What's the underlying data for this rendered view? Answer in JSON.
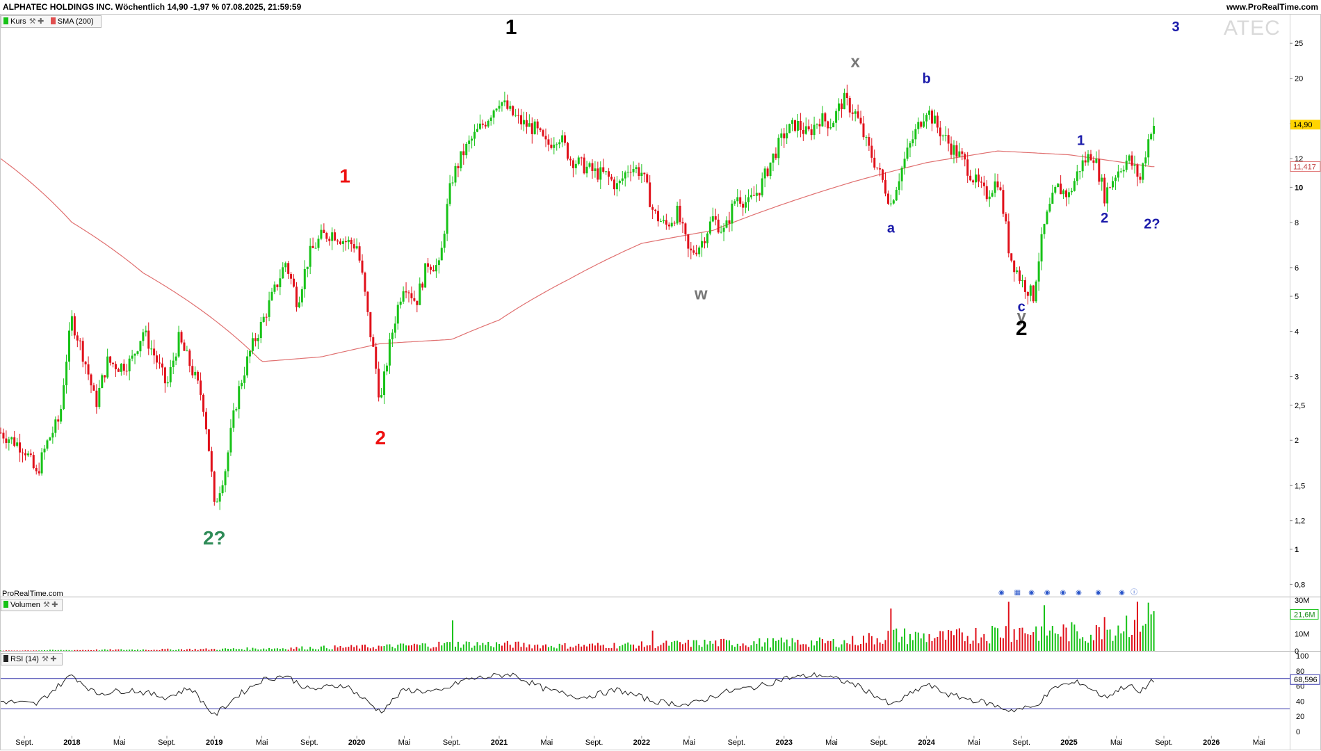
{
  "header": {
    "title": "ALPHATEC HOLDINGS INC. Wöchentlich 14,90 -1,97 % 07.08.2025, 21:59:59",
    "site": "www.ProRealTime.com"
  },
  "watermark": "ATEC",
  "source_label": "ProRealTime.com",
  "colors": {
    "up": "#17c217",
    "down": "#e0101a",
    "sma": "#e07070",
    "rsi_line": "#222222",
    "rsi_bounds": "#3333aa",
    "last_price_bg": "#ffd400"
  },
  "legends": {
    "price": [
      {
        "label": "Kurs",
        "color": "#17c217"
      },
      {
        "label": "SMA (200)",
        "color": "#e05050"
      }
    ],
    "volume": [
      {
        "label": "Volumen",
        "color": "#17c217"
      }
    ],
    "rsi": [
      {
        "label": "RSI (14)",
        "color": "#222222"
      }
    ]
  },
  "chart_data": [
    {
      "type": "candlestick",
      "panel": "price",
      "scale": "log",
      "ylim": [
        0.74,
        30
      ],
      "y_ticks": [
        "0,8",
        "1",
        "1,2",
        "1,5",
        "2",
        "2,5",
        "3",
        "4",
        "5",
        "6",
        "8",
        "10",
        "12",
        "15",
        "20",
        "25"
      ],
      "x_ticks": [
        "Sept.",
        "2018",
        "Mai",
        "Sept.",
        "2019",
        "Mai",
        "Sept.",
        "2020",
        "Mai",
        "Sept.",
        "2021",
        "Mai",
        "Sept.",
        "2022",
        "Mai",
        "Sept.",
        "2023",
        "Mai",
        "Sept.",
        "2024",
        "Mai",
        "Sept.",
        "2025",
        "Mai",
        "Sept.",
        "2026",
        "Mai"
      ],
      "bold_ticks": [
        "2018",
        "2019",
        "2020",
        "2021",
        "2022",
        "2023",
        "2024",
        "2025",
        "2026",
        "1",
        "10"
      ],
      "last_price_label": "14,90",
      "sma_label": "11,417",
      "price_path": [
        [
          "2017-07",
          2.1
        ],
        [
          "2017-09",
          1.9
        ],
        [
          "2017-10",
          1.6
        ],
        [
          "2017-11",
          2.0
        ],
        [
          "2017-12",
          2.3
        ],
        [
          "2018-01",
          4.3
        ],
        [
          "2018-02",
          3.4
        ],
        [
          "2018-03",
          2.5
        ],
        [
          "2018-04",
          3.3
        ],
        [
          "2018-05",
          3.2
        ],
        [
          "2018-06",
          3.3
        ],
        [
          "2018-07",
          4.0
        ],
        [
          "2018-08",
          3.4
        ],
        [
          "2018-09",
          2.8
        ],
        [
          "2018-10",
          3.8
        ],
        [
          "2018-11",
          3.2
        ],
        [
          "2018-12",
          2.6
        ],
        [
          "2019-01",
          1.3
        ],
        [
          "2019-02",
          1.7
        ],
        [
          "2019-03",
          2.7
        ],
        [
          "2019-04",
          3.5
        ],
        [
          "2019-05",
          4.2
        ],
        [
          "2019-06",
          5.1
        ],
        [
          "2019-07",
          6.2
        ],
        [
          "2019-08",
          4.8
        ],
        [
          "2019-09",
          6.5
        ],
        [
          "2019-10",
          7.3
        ],
        [
          "2019-11",
          7.5
        ],
        [
          "2019-12",
          7.1
        ],
        [
          "2020-01",
          6.9
        ],
        [
          "2020-02",
          4.2
        ],
        [
          "2020-03",
          2.5
        ],
        [
          "2020-04",
          4.0
        ],
        [
          "2020-05",
          5.5
        ],
        [
          "2020-06",
          4.8
        ],
        [
          "2020-07",
          6.2
        ],
        [
          "2020-08",
          6.0
        ],
        [
          "2020-09",
          10.5
        ],
        [
          "2020-10",
          12.5
        ],
        [
          "2020-11",
          14.0
        ],
        [
          "2020-12",
          15.5
        ],
        [
          "2021-01",
          17.5
        ],
        [
          "2021-02",
          16.0
        ],
        [
          "2021-03",
          15.0
        ],
        [
          "2021-04",
          14.5
        ],
        [
          "2021-05",
          13.0
        ],
        [
          "2021-06",
          14.0
        ],
        [
          "2021-07",
          12.0
        ],
        [
          "2021-08",
          11.5
        ],
        [
          "2021-09",
          11.0
        ],
        [
          "2021-10",
          10.8
        ],
        [
          "2021-11",
          10.0
        ],
        [
          "2021-12",
          11.5
        ],
        [
          "2022-01",
          11.0
        ],
        [
          "2022-02",
          8.5
        ],
        [
          "2022-03",
          7.8
        ],
        [
          "2022-04",
          8.5
        ],
        [
          "2022-05",
          6.5
        ],
        [
          "2022-06",
          7.0
        ],
        [
          "2022-07",
          8.2
        ],
        [
          "2022-08",
          7.5
        ],
        [
          "2022-09",
          9.5
        ],
        [
          "2022-10",
          9.0
        ],
        [
          "2022-11",
          10.0
        ],
        [
          "2022-12",
          12.0
        ],
        [
          "2023-01",
          14.0
        ],
        [
          "2023-02",
          15.0
        ],
        [
          "2023-03",
          14.0
        ],
        [
          "2023-04",
          15.5
        ],
        [
          "2023-05",
          15.0
        ],
        [
          "2023-06",
          17.5
        ],
        [
          "2023-07",
          16.0
        ],
        [
          "2023-08",
          13.0
        ],
        [
          "2023-09",
          11.0
        ],
        [
          "2023-10",
          9.0
        ],
        [
          "2023-11",
          11.5
        ],
        [
          "2023-12",
          14.0
        ],
        [
          "2024-01",
          16.5
        ],
        [
          "2024-02",
          14.5
        ],
        [
          "2024-03",
          13.0
        ],
        [
          "2024-04",
          12.0
        ],
        [
          "2024-05",
          10.5
        ],
        [
          "2024-06",
          9.5
        ],
        [
          "2024-07",
          10.5
        ],
        [
          "2024-08",
          6.5
        ],
        [
          "2024-09",
          5.5
        ],
        [
          "2024-10",
          5.0
        ],
        [
          "2024-11",
          8.0
        ],
        [
          "2024-12",
          10.0
        ],
        [
          "2025-01",
          9.5
        ],
        [
          "2025-02",
          11.5
        ],
        [
          "2025-03",
          12.5
        ],
        [
          "2025-04",
          9.5
        ],
        [
          "2025-05",
          11.0
        ],
        [
          "2025-06",
          12.0
        ],
        [
          "2025-07",
          10.5
        ],
        [
          "2025-08",
          14.9
        ]
      ],
      "sma_path": [
        [
          "2017-07",
          12.0
        ],
        [
          "2018-01",
          8.0
        ],
        [
          "2018-07",
          5.8
        ],
        [
          "2019-01",
          4.3
        ],
        [
          "2019-05",
          3.3
        ],
        [
          "2019-10",
          3.4
        ],
        [
          "2020-03",
          3.7
        ],
        [
          "2020-09",
          3.8
        ],
        [
          "2021-01",
          4.3
        ],
        [
          "2021-07",
          5.6
        ],
        [
          "2022-01",
          7.0
        ],
        [
          "2022-07",
          7.6
        ],
        [
          "2023-01",
          9.0
        ],
        [
          "2023-07",
          10.4
        ],
        [
          "2024-01",
          11.7
        ],
        [
          "2024-07",
          12.6
        ],
        [
          "2025-01",
          12.3
        ],
        [
          "2025-08",
          11.4
        ]
      ],
      "annotations": [
        {
          "text": "2?",
          "date": "2019-01",
          "price": 1.03,
          "color": "#2e8b57"
        },
        {
          "text": "1",
          "date": "2019-12",
          "price": 10.3,
          "color": "#ee1111"
        },
        {
          "text": "2",
          "date": "2020-03",
          "price": 1.95,
          "color": "#ee1111"
        },
        {
          "text": "1",
          "date": "2021-02",
          "price": 26.5,
          "color": "#000000"
        },
        {
          "text": "w",
          "date": "2022-06",
          "price": 4.9,
          "color": "#777777"
        },
        {
          "text": "x",
          "date": "2023-07",
          "price": 21.5,
          "color": "#777777"
        },
        {
          "text": "a",
          "date": "2023-10",
          "price": 7.5,
          "color": "#1a1aaa"
        },
        {
          "text": "b",
          "date": "2024-01",
          "price": 19.4,
          "color": "#1a1aaa"
        },
        {
          "text": "c",
          "date": "2024-09",
          "price": 4.55,
          "color": "#1a1aaa"
        },
        {
          "text": "y",
          "date": "2024-09",
          "price": 4.25,
          "color": "#777777"
        },
        {
          "text": "2",
          "date": "2024-09",
          "price": 3.9,
          "color": "#000000"
        },
        {
          "text": "1",
          "date": "2025-02",
          "price": 13.1,
          "color": "#1a1aaa"
        },
        {
          "text": "2",
          "date": "2025-04",
          "price": 8.0,
          "color": "#1a1aaa"
        },
        {
          "text": "2?",
          "date": "2025-08",
          "price": 7.7,
          "color": "#1a1aaa"
        },
        {
          "text": "3",
          "date": "2025-10",
          "price": 27.0,
          "color": "#1a1aaa"
        }
      ]
    },
    {
      "type": "bar",
      "panel": "volume",
      "ylim": [
        0,
        30
      ],
      "y_ticks": [
        "30M",
        "10M",
        "0"
      ],
      "last_value_label": "21,6M",
      "volume_path": [
        [
          "2017-07",
          0.2
        ],
        [
          "2018-01",
          0.5
        ],
        [
          "2019-01",
          1.0
        ],
        [
          "2019-06",
          1.5
        ],
        [
          "2020-03",
          2.5
        ],
        [
          "2020-09",
          4.0
        ],
        [
          "2020-12",
          4.0
        ],
        [
          "2021-06",
          3.0
        ],
        [
          "2022-01",
          3.5
        ],
        [
          "2022-06",
          4.5
        ],
        [
          "2023-01",
          5.0
        ],
        [
          "2023-06",
          5.0
        ],
        [
          "2023-10",
          9.0
        ],
        [
          "2024-03",
          8.0
        ],
        [
          "2024-08",
          12.0
        ],
        [
          "2024-11",
          12.0
        ],
        [
          "2025-03",
          10.0
        ],
        [
          "2025-08",
          21.6
        ]
      ],
      "spikes": [
        [
          "2020-09",
          18.0
        ],
        [
          "2022-02",
          12.0
        ],
        [
          "2023-10",
          25.0
        ],
        [
          "2024-08",
          29.0
        ],
        [
          "2024-11",
          27.0
        ],
        [
          "2025-04",
          20.0
        ],
        [
          "2025-08",
          21.6
        ]
      ]
    },
    {
      "type": "line",
      "panel": "rsi",
      "ylim": [
        0,
        100
      ],
      "y_ticks": [
        "100",
        "80",
        "60",
        "40",
        "20",
        "0"
      ],
      "bounds": [
        30,
        70
      ],
      "last_value_label": "68,596",
      "rsi_path": [
        [
          "2017-07",
          40
        ],
        [
          "2017-10",
          36
        ],
        [
          "2018-01",
          75
        ],
        [
          "2018-03",
          50
        ],
        [
          "2018-06",
          55
        ],
        [
          "2018-09",
          45
        ],
        [
          "2018-11",
          58
        ],
        [
          "2019-01",
          21
        ],
        [
          "2019-03",
          48
        ],
        [
          "2019-05",
          68
        ],
        [
          "2019-07",
          74
        ],
        [
          "2019-09",
          55
        ],
        [
          "2019-12",
          62
        ],
        [
          "2020-03",
          26
        ],
        [
          "2020-05",
          55
        ],
        [
          "2020-08",
          52
        ],
        [
          "2020-10",
          68
        ],
        [
          "2020-12",
          72
        ],
        [
          "2021-02",
          76
        ],
        [
          "2021-05",
          55
        ],
        [
          "2021-08",
          45
        ],
        [
          "2021-11",
          55
        ],
        [
          "2022-02",
          40
        ],
        [
          "2022-05",
          35
        ],
        [
          "2022-08",
          52
        ],
        [
          "2022-11",
          60
        ],
        [
          "2023-01",
          70
        ],
        [
          "2023-04",
          75
        ],
        [
          "2023-07",
          62
        ],
        [
          "2023-09",
          45
        ],
        [
          "2023-10",
          34
        ],
        [
          "2024-01",
          62
        ],
        [
          "2024-03",
          48
        ],
        [
          "2024-06",
          38
        ],
        [
          "2024-08",
          28
        ],
        [
          "2024-10",
          32
        ],
        [
          "2024-12",
          60
        ],
        [
          "2025-02",
          65
        ],
        [
          "2025-04",
          45
        ],
        [
          "2025-06",
          62
        ],
        [
          "2025-07",
          50
        ],
        [
          "2025-08",
          68.6
        ]
      ]
    }
  ]
}
